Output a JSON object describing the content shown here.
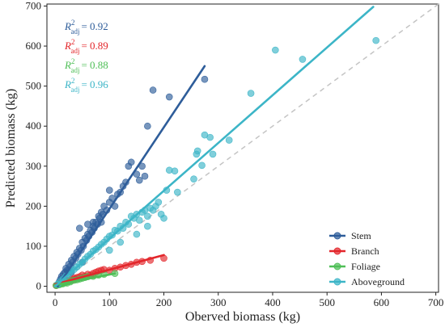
{
  "chart_data": {
    "type": "scatter",
    "xlabel": "Oberved biomass (kg)",
    "ylabel": "Predicted biomass (kg)",
    "xlim": [
      -15,
      705
    ],
    "ylim": [
      -15,
      705
    ],
    "xticks": [
      0,
      100,
      200,
      300,
      400,
      500,
      600,
      700
    ],
    "yticks": [
      0,
      100,
      200,
      300,
      400,
      500,
      600,
      700
    ],
    "grid": false,
    "reference_line": "1:1 dashed grey",
    "legend_position": "bottom-right",
    "series": [
      {
        "name": "Stem",
        "color": "#2e5d9a",
        "r2_label": "= 0.92",
        "fit": {
          "x": [
            5,
            275
          ],
          "y": [
            0,
            550
          ]
        },
        "points": [
          [
            5,
            5
          ],
          [
            8,
            12
          ],
          [
            10,
            18
          ],
          [
            12,
            25
          ],
          [
            15,
            30
          ],
          [
            18,
            35
          ],
          [
            20,
            45
          ],
          [
            22,
            40
          ],
          [
            25,
            55
          ],
          [
            28,
            50
          ],
          [
            30,
            65
          ],
          [
            32,
            60
          ],
          [
            35,
            75
          ],
          [
            38,
            70
          ],
          [
            40,
            85
          ],
          [
            42,
            80
          ],
          [
            45,
            95
          ],
          [
            48,
            90
          ],
          [
            50,
            110
          ],
          [
            52,
            100
          ],
          [
            55,
            120
          ],
          [
            58,
            115
          ],
          [
            60,
            130
          ],
          [
            62,
            125
          ],
          [
            65,
            140
          ],
          [
            68,
            135
          ],
          [
            70,
            150
          ],
          [
            72,
            145
          ],
          [
            75,
            160
          ],
          [
            78,
            155
          ],
          [
            80,
            175
          ],
          [
            82,
            170
          ],
          [
            85,
            185
          ],
          [
            88,
            180
          ],
          [
            90,
            200
          ],
          [
            95,
            190
          ],
          [
            100,
            210
          ],
          [
            105,
            220
          ],
          [
            110,
            200
          ],
          [
            115,
            230
          ],
          [
            120,
            235
          ],
          [
            125,
            250
          ],
          [
            130,
            260
          ],
          [
            135,
            300
          ],
          [
            140,
            310
          ],
          [
            150,
            280
          ],
          [
            155,
            265
          ],
          [
            160,
            300
          ],
          [
            165,
            275
          ],
          [
            170,
            400
          ],
          [
            180,
            490
          ],
          [
            210,
            473
          ],
          [
            275,
            517
          ],
          [
            45,
            145
          ],
          [
            60,
            155
          ],
          [
            70,
            160
          ],
          [
            85,
            160
          ],
          [
            100,
            240
          ],
          [
            50,
            60
          ],
          [
            30,
            35
          ],
          [
            25,
            40
          ]
        ]
      },
      {
        "name": "Branch",
        "color": "#e3262b",
        "r2_label": "= 0.89",
        "fit": {
          "x": [
            0,
            200
          ],
          "y": [
            5,
            78
          ]
        },
        "points": [
          [
            2,
            2
          ],
          [
            5,
            4
          ],
          [
            8,
            6
          ],
          [
            10,
            8
          ],
          [
            12,
            10
          ],
          [
            15,
            10
          ],
          [
            18,
            12
          ],
          [
            20,
            14
          ],
          [
            22,
            12
          ],
          [
            25,
            15
          ],
          [
            28,
            16
          ],
          [
            30,
            18
          ],
          [
            32,
            15
          ],
          [
            35,
            20
          ],
          [
            38,
            18
          ],
          [
            40,
            22
          ],
          [
            45,
            24
          ],
          [
            50,
            28
          ],
          [
            55,
            25
          ],
          [
            60,
            30
          ],
          [
            65,
            28
          ],
          [
            70,
            32
          ],
          [
            75,
            35
          ],
          [
            80,
            38
          ],
          [
            85,
            40
          ],
          [
            90,
            42
          ],
          [
            100,
            40
          ],
          [
            110,
            45
          ],
          [
            120,
            48
          ],
          [
            130,
            52
          ],
          [
            140,
            55
          ],
          [
            150,
            60
          ],
          [
            160,
            62
          ],
          [
            175,
            65
          ],
          [
            200,
            70
          ]
        ]
      },
      {
        "name": "Foliage",
        "color": "#4fbf57",
        "r2_label": "= 0.88",
        "fit": {
          "x": [
            0,
            110
          ],
          "y": [
            3,
            32
          ]
        },
        "points": [
          [
            2,
            2
          ],
          [
            4,
            3
          ],
          [
            6,
            5
          ],
          [
            8,
            4
          ],
          [
            10,
            6
          ],
          [
            12,
            7
          ],
          [
            14,
            6
          ],
          [
            16,
            8
          ],
          [
            18,
            9
          ],
          [
            20,
            10
          ],
          [
            22,
            8
          ],
          [
            25,
            12
          ],
          [
            28,
            11
          ],
          [
            30,
            14
          ],
          [
            35,
            15
          ],
          [
            40,
            16
          ],
          [
            45,
            18
          ],
          [
            50,
            20
          ],
          [
            55,
            22
          ],
          [
            60,
            24
          ],
          [
            70,
            25
          ],
          [
            80,
            28
          ],
          [
            90,
            30
          ],
          [
            110,
            32
          ]
        ]
      },
      {
        "name": "Aboveground",
        "color": "#3cb5c7",
        "r2_label": "= 0.96",
        "fit": {
          "x": [
            0,
            585
          ],
          "y": [
            0,
            698
          ]
        },
        "points": [
          [
            5,
            5
          ],
          [
            10,
            12
          ],
          [
            15,
            18
          ],
          [
            20,
            25
          ],
          [
            25,
            30
          ],
          [
            30,
            38
          ],
          [
            35,
            42
          ],
          [
            40,
            48
          ],
          [
            45,
            55
          ],
          [
            50,
            60
          ],
          [
            55,
            68
          ],
          [
            60,
            75
          ],
          [
            65,
            80
          ],
          [
            70,
            88
          ],
          [
            75,
            92
          ],
          [
            80,
            98
          ],
          [
            85,
            105
          ],
          [
            90,
            110
          ],
          [
            95,
            118
          ],
          [
            100,
            125
          ],
          [
            105,
            128
          ],
          [
            110,
            140
          ],
          [
            115,
            138
          ],
          [
            120,
            150
          ],
          [
            125,
            145
          ],
          [
            130,
            160
          ],
          [
            135,
            155
          ],
          [
            140,
            175
          ],
          [
            145,
            170
          ],
          [
            150,
            180
          ],
          [
            155,
            165
          ],
          [
            160,
            185
          ],
          [
            165,
            190
          ],
          [
            170,
            175
          ],
          [
            175,
            195
          ],
          [
            180,
            190
          ],
          [
            185,
            200
          ],
          [
            190,
            210
          ],
          [
            195,
            180
          ],
          [
            200,
            170
          ],
          [
            205,
            240
          ],
          [
            210,
            290
          ],
          [
            220,
            288
          ],
          [
            225,
            235
          ],
          [
            255,
            268
          ],
          [
            260,
            330
          ],
          [
            262,
            338
          ],
          [
            270,
            302
          ],
          [
            275,
            378
          ],
          [
            285,
            372
          ],
          [
            290,
            330
          ],
          [
            320,
            365
          ],
          [
            360,
            482
          ],
          [
            405,
            590
          ],
          [
            455,
            567
          ],
          [
            590,
            614
          ],
          [
            100,
            90
          ],
          [
            120,
            110
          ],
          [
            150,
            130
          ],
          [
            170,
            150
          ]
        ]
      }
    ]
  }
}
